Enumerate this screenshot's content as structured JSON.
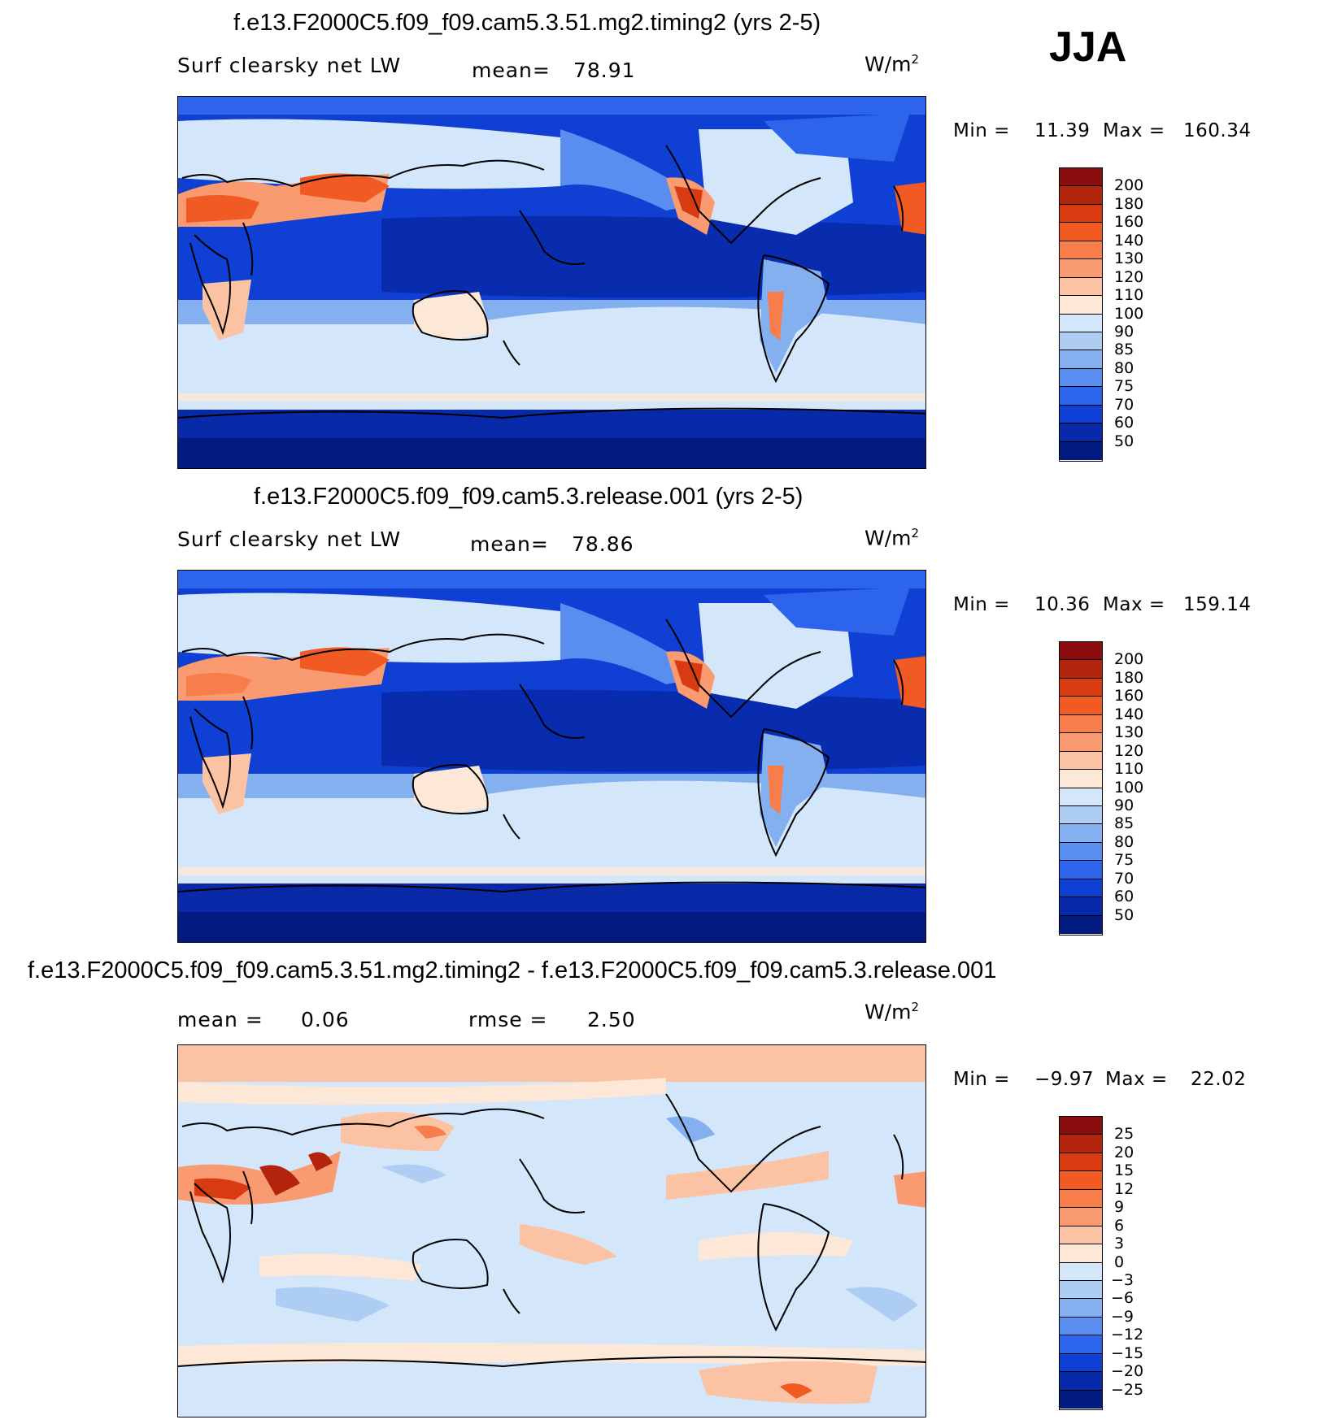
{
  "season": "JJA",
  "panels": [
    {
      "title": "f.e13.F2000C5.f09_f09.cam5.3.51.mg2.timing2 (yrs 2-5)",
      "left_label": "Surf clearsky net LW",
      "stat_label": "mean=",
      "stat_value": "78.91",
      "units": "W/m",
      "units_exp": "2",
      "min_label": "Min =",
      "min_value": "11.39",
      "max_label": "Max =",
      "max_value": "160.34",
      "colorbar": {
        "labels": [
          "200",
          "180",
          "160",
          "140",
          "130",
          "120",
          "110",
          "100",
          "90",
          "85",
          "80",
          "75",
          "70",
          "60",
          "50"
        ],
        "colors": [
          "#8a0c0c",
          "#b3240c",
          "#d83a12",
          "#f25a24",
          "#f77d4b",
          "#f99a70",
          "#fbc3a4",
          "#fde7d6",
          "#d4e6f9",
          "#adcdf3",
          "#84b0ef",
          "#5a8df0",
          "#2c64ec",
          "#0f3fd3",
          "#0829a8",
          "#031a80"
        ]
      }
    },
    {
      "title": "f.e13.F2000C5.f09_f09.cam5.3.release.001 (yrs 2-5)",
      "left_label": "Surf clearsky net LW",
      "stat_label": "mean=",
      "stat_value": "78.86",
      "units": "W/m",
      "units_exp": "2",
      "min_label": "Min =",
      "min_value": "10.36",
      "max_label": "Max =",
      "max_value": "159.14",
      "colorbar": {
        "labels": [
          "200",
          "180",
          "160",
          "140",
          "130",
          "120",
          "110",
          "100",
          "90",
          "85",
          "80",
          "75",
          "70",
          "60",
          "50"
        ],
        "colors": [
          "#8a0c0c",
          "#b3240c",
          "#d83a12",
          "#f25a24",
          "#f77d4b",
          "#f99a70",
          "#fbc3a4",
          "#fde7d6",
          "#d4e6f9",
          "#adcdf3",
          "#84b0ef",
          "#5a8df0",
          "#2c64ec",
          "#0f3fd3",
          "#0829a8",
          "#031a80"
        ]
      }
    },
    {
      "title": "f.e13.F2000C5.f09_f09.cam5.3.51.mg2.timing2 - f.e13.F2000C5.f09_f09.cam5.3.release.001",
      "left_label": "mean =",
      "left_value": "0.06",
      "stat_label": "rmse =",
      "stat_value": "2.50",
      "units": "W/m",
      "units_exp": "2",
      "min_label": "Min =",
      "min_value": "−9.97",
      "max_label": "Max =",
      "max_value": "22.02",
      "colorbar": {
        "labels": [
          "25",
          "20",
          "15",
          "12",
          "9",
          "6",
          "3",
          "0",
          "−3",
          "−6",
          "−9",
          "−12",
          "−15",
          "−20",
          "−25"
        ],
        "colors": [
          "#8a0c0c",
          "#b3240c",
          "#d83a12",
          "#f25a24",
          "#f77d4b",
          "#f99a70",
          "#fbc3a4",
          "#fde7d6",
          "#d4e6f9",
          "#adcdf3",
          "#84b0ef",
          "#5a8df0",
          "#2c64ec",
          "#0f3fd3",
          "#0829a8",
          "#031a80"
        ]
      }
    }
  ]
}
